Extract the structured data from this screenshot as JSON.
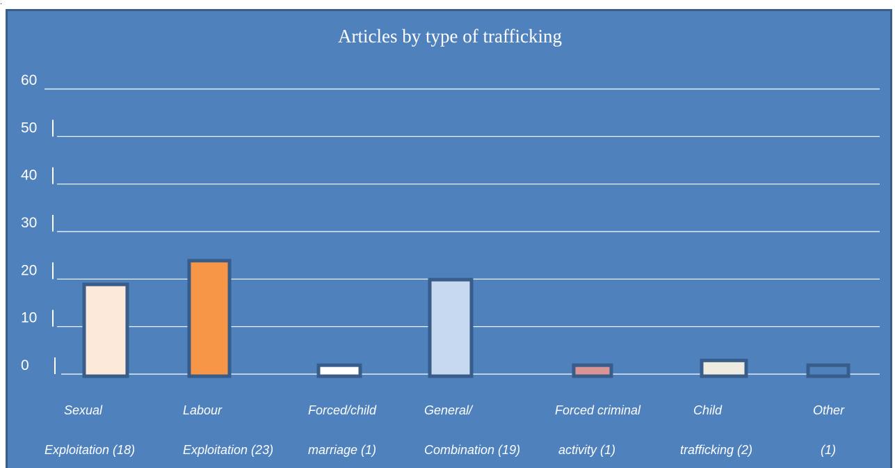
{
  "stray_mark": ".",
  "colors": {
    "background": "#4f81bd",
    "frame": "#385d8a",
    "bar_outline": "#385d8a",
    "text": "#ffffff"
  },
  "chart_data": {
    "type": "bar",
    "title": "Articles by type of trafficking",
    "xlabel": "",
    "ylabel": "",
    "ylim": [
      0,
      60
    ],
    "grid": true,
    "y_ticks": [
      {
        "value": 0,
        "label": "0",
        "bar": true
      },
      {
        "value": 10,
        "label": "10",
        "bar": true
      },
      {
        "value": 20,
        "label": "20",
        "bar": true
      },
      {
        "value": 30,
        "label": "30",
        "bar": true
      },
      {
        "value": 40,
        "label": "40",
        "bar": true
      },
      {
        "value": 50,
        "label": "50",
        "bar": true
      },
      {
        "value": 60,
        "label": "60",
        "bar": false
      }
    ],
    "categories": [
      {
        "line1": "Sexual",
        "line2": "Exploitation (18)",
        "value": 18,
        "color": "#fde9d9"
      },
      {
        "line1": "Labour",
        "line2": "Exploitation (23)",
        "value": 23,
        "color": "#f79646"
      },
      {
        "line1": "Forced/child",
        "line2": "marriage (1)",
        "value": 1,
        "color": "#ffffff"
      },
      {
        "line1": "General/",
        "line2": "Combination (19)",
        "value": 19,
        "color": "#c6d9f1"
      },
      {
        "line1": "Forced criminal",
        "line2": "activity (1)",
        "value": 1,
        "color": "#d99594"
      },
      {
        "line1": "Child",
        "line2": "trafficking (2)",
        "value": 2,
        "color": "#eeece1"
      },
      {
        "line1": "Other",
        "line2": "(1)",
        "value": 1,
        "color": "#4f81bd"
      }
    ]
  }
}
